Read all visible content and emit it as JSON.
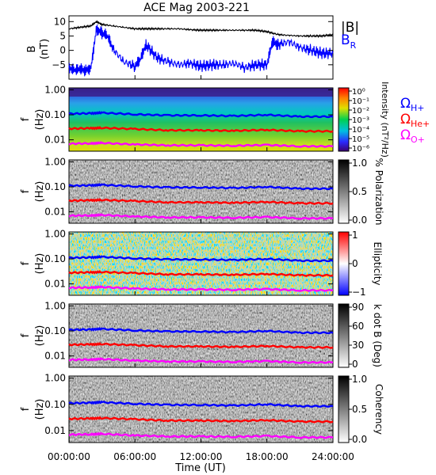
{
  "title": "ACE Mag 2003-221",
  "time_axis": {
    "label": "Time (UT)",
    "ticks": [
      "00:00:00",
      "06:00:00",
      "12:00:00",
      "18:00:00",
      "24:00:00"
    ],
    "tick_hours": [
      0,
      6,
      12,
      18,
      24
    ],
    "range_hours": [
      0,
      24
    ]
  },
  "chart_data": [
    {
      "type": "line",
      "panel": "magnetic-field",
      "ylabel": "B (nT)",
      "ylim": [
        -10,
        12
      ],
      "yticks": [
        10,
        5,
        0,
        -5
      ],
      "series": [
        {
          "name": "|B|",
          "color": "#000000",
          "x": [
            0,
            1,
            2,
            2.5,
            3,
            4,
            5,
            6,
            7,
            8,
            9,
            10,
            11,
            12,
            13,
            14,
            15,
            16,
            17,
            18,
            19,
            20,
            21,
            22,
            23,
            24
          ],
          "y": [
            7.5,
            8,
            8.5,
            10,
            9,
            8.5,
            8,
            7.5,
            7.5,
            7.5,
            7.5,
            7.5,
            7.2,
            7,
            7,
            7,
            7,
            7,
            7,
            6.5,
            5.5,
            5.2,
            5,
            5,
            5,
            5.5
          ]
        },
        {
          "name": "B_R",
          "color": "#0000ff",
          "x": [
            0,
            0.5,
            1,
            1.5,
            2,
            2.5,
            3,
            3.5,
            4,
            5,
            6,
            6.5,
            7,
            8,
            9,
            10,
            11,
            12,
            13,
            14,
            15,
            16,
            17,
            18,
            18.5,
            19,
            20,
            21,
            22,
            23,
            24
          ],
          "y": [
            -6,
            -7,
            -6.5,
            -7,
            -6,
            7.5,
            6,
            5,
            0.5,
            -4,
            -5.5,
            -3,
            2,
            -2.5,
            -4,
            -5,
            -4.5,
            -5.5,
            -5,
            -5,
            -4.5,
            -6,
            -5,
            -5,
            3,
            2,
            3,
            1,
            0,
            -1,
            -1
          ]
        }
      ]
    },
    {
      "type": "heatmap",
      "panel": "intensity",
      "ylabel": "f (Hz)",
      "yticks": [
        "1.00",
        "0.10",
        "0.01"
      ],
      "colorbar": {
        "label": "Intensity (nT²/Hz)",
        "ticks": [
          "10⁰",
          "10⁻¹",
          "10⁻²",
          "10⁻³",
          "10⁻⁴",
          "10⁻⁵",
          "10⁻⁶"
        ],
        "values": [
          1,
          0.1,
          0.01,
          0.001,
          0.0001,
          1e-05,
          1e-06
        ],
        "scale": "log",
        "colormap": "rainbow"
      },
      "overlays": [
        {
          "name": "ΩH+",
          "color": "#0000ff",
          "x": [
            0,
            2,
            3,
            6,
            9,
            12,
            15,
            18,
            21,
            24
          ],
          "y": [
            0.11,
            0.115,
            0.12,
            0.105,
            0.095,
            0.095,
            0.09,
            0.1,
            0.085,
            0.085
          ]
        },
        {
          "name": "ΩHe+",
          "color": "#ff0000",
          "x": [
            0,
            2,
            3,
            6,
            9,
            12,
            15,
            18,
            21,
            24
          ],
          "y": [
            0.028,
            0.029,
            0.03,
            0.027,
            0.024,
            0.024,
            0.023,
            0.025,
            0.022,
            0.022
          ]
        },
        {
          "name": "ΩO+",
          "color": "#ff00ff",
          "x": [
            0,
            2,
            3,
            6,
            9,
            12,
            15,
            18,
            21,
            24
          ],
          "y": [
            0.007,
            0.0072,
            0.0075,
            0.0065,
            0.006,
            0.006,
            0.0058,
            0.0062,
            0.0055,
            0.0055
          ]
        }
      ]
    },
    {
      "type": "heatmap",
      "panel": "polarization",
      "ylabel": "f (Hz)",
      "yticks": [
        "1.00",
        "0.10",
        "0.01"
      ],
      "colorbar": {
        "label": "% Polarization",
        "ticks": [
          "1.0",
          "0.5",
          "0.0"
        ],
        "values": [
          1.0,
          0.5,
          0.0
        ],
        "colormap": "gray"
      }
    },
    {
      "type": "heatmap",
      "panel": "ellipticity",
      "ylabel": "f (Hz)",
      "yticks": [
        "1.00",
        "0.10",
        "0.01"
      ],
      "colorbar": {
        "label": "Ellipticity",
        "ticks": [
          "1",
          "0",
          "−1"
        ],
        "values": [
          1,
          0,
          -1
        ],
        "colormap": "blue-white-red"
      }
    },
    {
      "type": "heatmap",
      "panel": "k-dot-b",
      "ylabel": "f (Hz)",
      "yticks": [
        "1.00",
        "0.10",
        "0.01"
      ],
      "colorbar": {
        "label": "k dot B (Deg)",
        "ticks": [
          "90",
          "60",
          "30",
          "0"
        ],
        "values": [
          90,
          60,
          30,
          0
        ],
        "colormap": "gray"
      }
    },
    {
      "type": "heatmap",
      "panel": "coherency",
      "ylabel": "f (Hz)",
      "yticks": [
        "1.00",
        "0.10",
        "0.01"
      ],
      "colorbar": {
        "label": "Coherency",
        "ticks": [
          "1.0",
          "0.5",
          "0.0"
        ],
        "values": [
          1.0,
          0.5,
          0.0
        ],
        "colormap": "gray"
      }
    }
  ],
  "legend": {
    "b_total": "|B|",
    "b_radial": "B",
    "b_radial_sub": "R",
    "gyro": [
      {
        "symbol": "Ω",
        "sub": "H+",
        "color": "#0000ff"
      },
      {
        "symbol": "Ω",
        "sub": "He+",
        "color": "#ff0000"
      },
      {
        "symbol": "Ω",
        "sub": "O+",
        "color": "#ff00ff"
      }
    ]
  },
  "panel_labels": {
    "b_axis_main": "B",
    "b_axis_unit": "(nT)",
    "f_axis_main": "f",
    "f_axis_unit": "(Hz)"
  }
}
